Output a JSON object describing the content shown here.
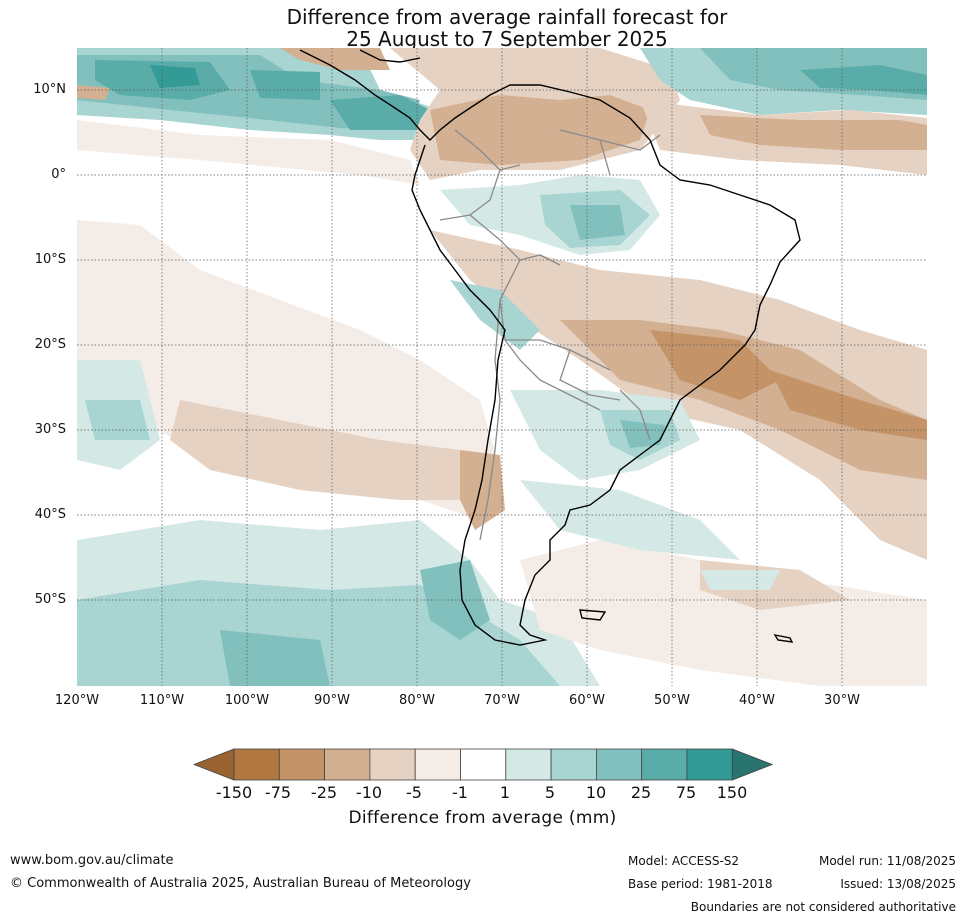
{
  "title_line1": "Difference from average rainfall forecast for",
  "title_line2": "25 August to 7 September 2025",
  "lat_labels": [
    "10°N",
    "0°",
    "10°S",
    "20°S",
    "30°S",
    "40°S",
    "50°S"
  ],
  "lon_labels": [
    "120°W",
    "110°W",
    "100°W",
    "90°W",
    "80°W",
    "70°W",
    "60°W",
    "50°W",
    "40°W",
    "30°W"
  ],
  "colorbar": {
    "ticks": [
      "-150",
      "-75",
      "-25",
      "-10",
      "-5",
      "-1",
      "1",
      "5",
      "10",
      "25",
      "75",
      "150"
    ],
    "colors": [
      "#9a6432",
      "#b07840",
      "#c49468",
      "#d4b092",
      "#e6d2c2",
      "#f4ece6",
      "#ffffff",
      "#d4e8e6",
      "#a8d4d2",
      "#82c0be",
      "#5aaca8",
      "#349a96",
      "#2a7470"
    ],
    "label": "Difference from average (mm)"
  },
  "footer": {
    "website": "www.bom.gov.au/climate",
    "copyright": "© Commonwealth of Australia 2025, Australian Bureau of Meteorology",
    "model": "Model: ACCESS-S2",
    "base_period": "Base period: 1981-2018",
    "model_run": "Model run: 11/08/2025",
    "issued": "Issued: 13/08/2025",
    "disclaimer": "Boundaries are not considered authoritative"
  }
}
